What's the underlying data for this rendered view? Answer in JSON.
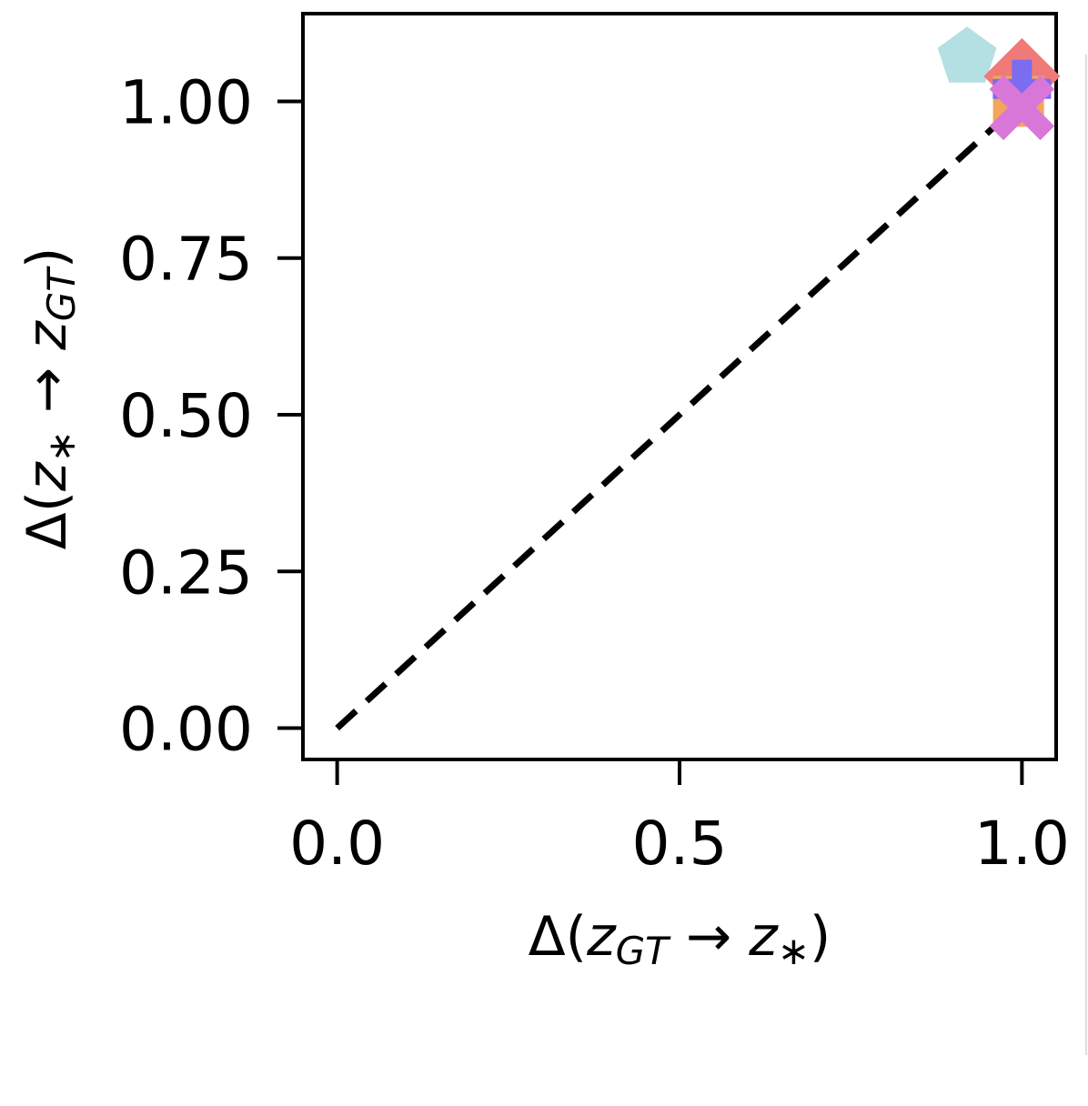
{
  "chart_data": {
    "type": "scatter",
    "title": "",
    "xlabel": "Δ(z_GT → z_*)",
    "ylabel": "Δ(z_* → z_GT)",
    "xlabel_parts": {
      "prefix": "Δ(",
      "var1": "z",
      "sub1": "GT",
      "arrow": " → ",
      "var2": "z",
      "sub2": "∗",
      "suffix": ")"
    },
    "ylabel_parts": {
      "prefix": "Δ(",
      "var1": "z",
      "sub1": "∗",
      "arrow": " → ",
      "var2": "z",
      "sub2": "GT",
      "suffix": ")"
    },
    "xlim": [
      -0.05,
      1.05
    ],
    "ylim": [
      -0.05,
      1.14
    ],
    "xticks": [
      0.0,
      0.5,
      1.0
    ],
    "xtick_labels": [
      "0.0",
      "0.5",
      "1.0"
    ],
    "yticks": [
      0.0,
      0.25,
      0.5,
      0.75,
      1.0
    ],
    "ytick_labels": [
      "0.00",
      "0.25",
      "0.50",
      "0.75",
      "1.00"
    ],
    "grid": false,
    "reference_line": {
      "x": [
        0,
        1
      ],
      "y": [
        0,
        1
      ],
      "style": "dashed",
      "color": "#000000"
    },
    "series": [
      {
        "marker": "pentagon",
        "color": "#b4dfe3",
        "x": [
          0.92
        ],
        "y": [
          1.07
        ]
      },
      {
        "marker": "diamond",
        "color": "#f07a78",
        "x": [
          1.0
        ],
        "y": [
          1.04
        ]
      },
      {
        "marker": "square",
        "color": "#f2a65a",
        "x": [
          0.995
        ],
        "y": [
          1.0
        ]
      },
      {
        "marker": "plus",
        "color": "#7b6cf0",
        "x": [
          1.0
        ],
        "y": [
          1.02
        ]
      },
      {
        "marker": "x",
        "color": "#d977d9",
        "x": [
          1.0
        ],
        "y": [
          0.99
        ]
      }
    ]
  }
}
